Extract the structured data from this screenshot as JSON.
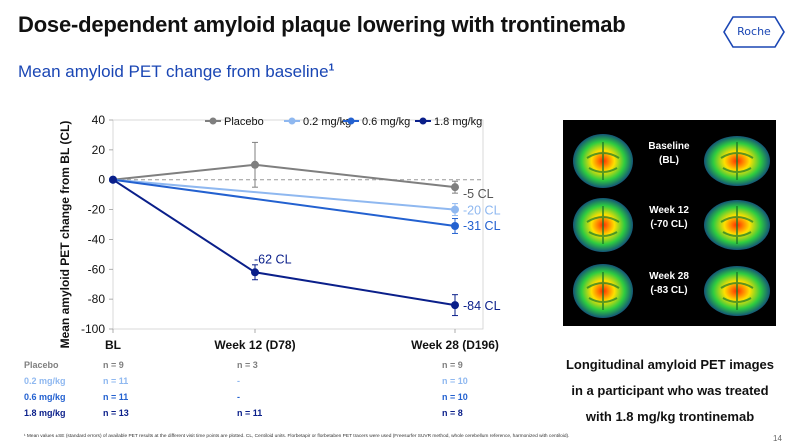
{
  "header": {
    "title": "Dose-dependent amyloid plaque lowering with trontinemab",
    "subtitle": "Mean amyloid PET change from baseline",
    "subtitle_sup": "1",
    "logo_text": "Roche"
  },
  "chart_data": {
    "type": "line",
    "ylabel": "Mean amyloid PET change from BL (CL)",
    "ylim": [
      -100,
      40
    ],
    "yticks": [
      40,
      20,
      0,
      -20,
      -40,
      -60,
      -80,
      -100
    ],
    "categories": [
      "BL",
      "Week 12 (D78)",
      "Week 28 (D196)"
    ],
    "series": [
      {
        "name": "Placebo",
        "color": "#7f7f7f",
        "values": [
          0,
          10,
          -5
        ],
        "err": [
          0,
          15,
          4
        ]
      },
      {
        "name": "0.2 mg/kg",
        "color": "#8fb8f0",
        "values": [
          0,
          null,
          -20
        ],
        "err": [
          0,
          0,
          4
        ]
      },
      {
        "name": "0.6 mg/kg",
        "color": "#2361d0",
        "values": [
          0,
          null,
          -31
        ],
        "err": [
          0,
          0,
          5
        ]
      },
      {
        "name": "1.8 mg/kg",
        "color": "#0a1f8a",
        "values": [
          0,
          -62,
          -84
        ],
        "err": [
          0,
          5,
          7
        ]
      }
    ],
    "annotations": {
      "placebo_end": "-5 CL",
      "low_end": "-20 CL",
      "mid_end": "-31 CL",
      "high_mid": "-62 CL",
      "high_end": "-84 CL"
    }
  },
  "n_table": {
    "rows": [
      {
        "label": "Placebo",
        "color": "#7f7f7f",
        "bl": "n = 9",
        "w12": "n = 3",
        "w28": "n = 9"
      },
      {
        "label": "0.2 mg/kg",
        "color": "#8fb8f0",
        "bl": "n = 11",
        "w12": "-",
        "w28": "n = 10"
      },
      {
        "label": "0.6 mg/kg",
        "color": "#2361d0",
        "bl": "n = 11",
        "w12": "-",
        "w28": "n = 10"
      },
      {
        "label": "1.8 mg/kg",
        "color": "#0a1f8a",
        "bl": "n = 13",
        "w12": "n = 11",
        "w28": "n = 8"
      }
    ]
  },
  "pet_panel": {
    "labels": [
      {
        "line1": "Baseline",
        "line2": "(BL)"
      },
      {
        "line1": "Week 12",
        "line2": "(-70 CL)"
      },
      {
        "line1": "Week 28",
        "line2": "(-83 CL)"
      }
    ],
    "caption_lines": [
      "Longitudinal amyloid PET images",
      "in a participant who was treated",
      "with 1.8 mg/kg trontinemab"
    ]
  },
  "footnote": "¹ Mean values ±SE (standard errors) of available PET results at the different visit time points are plotted. CL, Centiloid units. Florbetapir or florbetaben PET tracers were used (Freesurfer SUVR method, whole cerebellum reference, harmonized with centiloid).",
  "page_number": "14"
}
